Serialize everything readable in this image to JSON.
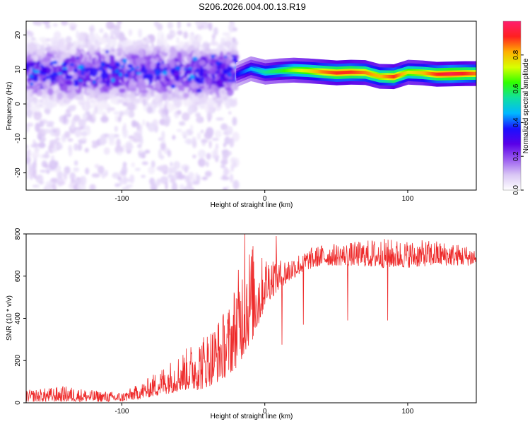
{
  "title": "S206.2026.004.00.13.R19",
  "chart_data": [
    {
      "type": "heatmap",
      "xlabel": "Height of straight line (km)",
      "ylabel": "Frequency (Hz)",
      "xlim": [
        -167,
        148
      ],
      "ylim": [
        -25,
        24
      ],
      "xticks": [
        -100,
        0,
        100
      ],
      "yticks": [
        -20,
        -10,
        0,
        10,
        20
      ],
      "colorbar": {
        "label": "Normalized spectral amplitude",
        "range": [
          0,
          1
        ],
        "ticks": [
          0.0,
          0.2,
          0.4,
          0.6,
          0.8
        ],
        "tick_labels": [
          "0.0",
          "0.2",
          "0.4",
          "0.6",
          "0.8"
        ],
        "colormap": [
          "#ffffff",
          "#d9c6f5",
          "#9b5cf0",
          "#5a00e8",
          "#1a10ff",
          "#00b8ff",
          "#10e0a0",
          "#30ff00",
          "#d8ff00",
          "#ffb000",
          "#ff2020",
          "#ff1e6e"
        ]
      },
      "ridge": {
        "x": [
          -20,
          -10,
          0,
          10,
          20,
          30,
          40,
          50,
          60,
          70,
          80,
          90,
          100,
          110,
          120,
          130,
          140,
          148
        ],
        "frequency": [
          8.5,
          10.2,
          9.2,
          9.6,
          9.8,
          9.6,
          9.3,
          9.0,
          9.2,
          9.1,
          8.0,
          7.9,
          9.2,
          9.0,
          8.6,
          8.7,
          8.8,
          8.8
        ],
        "amplitude": [
          0.35,
          0.45,
          0.55,
          0.6,
          0.7,
          0.75,
          0.85,
          0.9,
          0.9,
          0.85,
          0.8,
          0.9,
          0.75,
          0.8,
          0.9,
          0.95,
          0.9,
          0.85
        ]
      },
      "noise": {
        "x_range": [
          -167,
          -20
        ],
        "frequency_center": 9,
        "peak_amplitude": 0.3
      },
      "grid": false
    },
    {
      "type": "line",
      "xlabel": "Height of straight line (km)",
      "ylabel": "SNR (10 * v/v)",
      "xlim": [
        -167,
        148
      ],
      "ylim": [
        0,
        800
      ],
      "xticks": [
        -100,
        0,
        100
      ],
      "yticks": [
        0,
        200,
        400,
        600,
        800
      ],
      "color": "#ee2a2a",
      "envelope": {
        "x": [
          -167,
          -140,
          -120,
          -100,
          -85,
          -70,
          -55,
          -45,
          -35,
          -25,
          -18,
          -12,
          -8,
          -4,
          0,
          5,
          10,
          15,
          20,
          30,
          40,
          60,
          80,
          100,
          120,
          148
        ],
        "lo": [
          5,
          5,
          5,
          5,
          20,
          40,
          60,
          60,
          90,
          130,
          180,
          260,
          300,
          360,
          460,
          500,
          530,
          560,
          590,
          630,
          650,
          650,
          640,
          640,
          650,
          650
        ],
        "hi": [
          60,
          80,
          60,
          50,
          100,
          180,
          260,
          320,
          380,
          470,
          650,
          750,
          760,
          690,
          700,
          710,
          680,
          690,
          700,
          730,
          750,
          760,
          780,
          770,
          770,
          740
        ]
      },
      "spikes": [
        {
          "x": -14,
          "value": 800
        },
        {
          "x": 8,
          "value": 790
        },
        {
          "x": 58,
          "value": 390
        },
        {
          "x": 86,
          "value": 390
        },
        {
          "x": 27,
          "value": 370
        },
        {
          "x": 12,
          "value": 275
        }
      ],
      "grid": false
    }
  ]
}
